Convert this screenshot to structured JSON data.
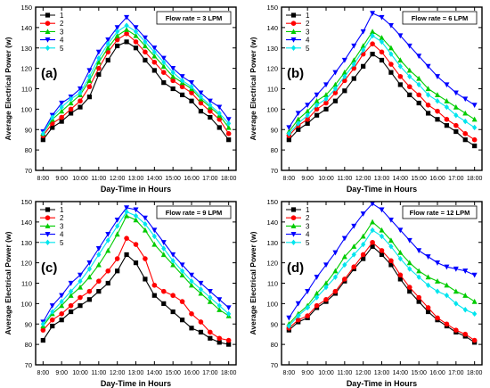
{
  "chart_data": [
    {
      "type": "line",
      "panel_label": "(a)",
      "annotation": "Flow rate = 3 LPM",
      "xlabel": "Day-Time in Hours",
      "ylabel": "Average Electrical Power (w)",
      "xticks": [
        "8:00",
        "9:00",
        "10:00",
        "11:00",
        "12:00",
        "13:00",
        "14:00",
        "15:00",
        "16:00",
        "17:00",
        "18:00"
      ],
      "x": [
        8,
        8.5,
        9,
        9.5,
        10,
        10.5,
        11,
        11.5,
        12,
        12.5,
        13,
        13.5,
        14,
        14.5,
        15,
        15.5,
        16,
        16.5,
        17,
        17.5,
        18
      ],
      "xlim": [
        7.6,
        18.4
      ],
      "ylim": [
        70,
        150
      ],
      "yticks": [
        70,
        80,
        90,
        100,
        110,
        120,
        130,
        140,
        150
      ],
      "legend_position": "top-left",
      "series": [
        {
          "name": "1",
          "values": [
            85,
            91,
            94,
            98,
            101,
            106,
            117,
            124,
            131,
            133,
            130,
            124,
            119,
            113,
            110,
            107,
            104,
            99,
            96,
            91,
            85
          ]
        },
        {
          "name": "2",
          "values": [
            87,
            93,
            96,
            100,
            104,
            111,
            120,
            128,
            134,
            137,
            133,
            128,
            123,
            118,
            114,
            111,
            108,
            103,
            99,
            95,
            88
          ]
        },
        {
          "name": "3",
          "values": [
            88,
            95,
            99,
            103,
            107,
            114,
            123,
            130,
            136,
            139,
            136,
            131,
            126,
            121,
            116,
            113,
            110,
            105,
            101,
            97,
            91
          ]
        },
        {
          "name": "4",
          "values": [
            89,
            97,
            103,
            106,
            110,
            119,
            128,
            134,
            140,
            145,
            140,
            135,
            130,
            125,
            120,
            116,
            113,
            108,
            104,
            101,
            95
          ]
        },
        {
          "name": "5",
          "values": [
            88,
            96,
            101,
            105,
            108,
            116,
            125,
            132,
            138,
            141,
            138,
            133,
            128,
            123,
            118,
            114,
            111,
            106,
            102,
            98,
            93
          ]
        }
      ]
    },
    {
      "type": "line",
      "panel_label": "(b)",
      "annotation": "Flow rate = 6 LPM",
      "xlabel": "Day-Time in Hours",
      "ylabel": "Average Electrical Power (w)",
      "xticks": [
        "8:00",
        "9:00",
        "10:00",
        "11:00",
        "12:00",
        "13:00",
        "14:00",
        "15:00",
        "16:00",
        "17:00",
        "18:00"
      ],
      "x": [
        8,
        8.5,
        9,
        9.5,
        10,
        10.5,
        11,
        11.5,
        12,
        12.5,
        13,
        13.5,
        14,
        14.5,
        15,
        15.5,
        16,
        16.5,
        17,
        17.5,
        18
      ],
      "xlim": [
        7.6,
        18.4
      ],
      "ylim": [
        70,
        150
      ],
      "yticks": [
        70,
        80,
        90,
        100,
        110,
        120,
        130,
        140,
        150
      ],
      "legend_position": "top-left",
      "series": [
        {
          "name": "1",
          "values": [
            85,
            90,
            93,
            97,
            100,
            104,
            109,
            115,
            121,
            127,
            124,
            118,
            112,
            107,
            103,
            98,
            95,
            92,
            89,
            85,
            82
          ]
        },
        {
          "name": "2",
          "values": [
            87,
            92,
            95,
            100,
            103,
            108,
            114,
            120,
            127,
            132,
            128,
            122,
            116,
            111,
            107,
            102,
            99,
            95,
            92,
            88,
            85
          ]
        },
        {
          "name": "3",
          "values": [
            89,
            95,
            99,
            104,
            107,
            112,
            118,
            124,
            131,
            138,
            135,
            130,
            124,
            119,
            115,
            110,
            107,
            104,
            101,
            98,
            95
          ]
        },
        {
          "name": "4",
          "values": [
            91,
            98,
            102,
            107,
            112,
            118,
            124,
            131,
            138,
            147,
            145,
            141,
            136,
            131,
            126,
            121,
            116,
            112,
            108,
            105,
            102
          ]
        },
        {
          "name": "5",
          "values": [
            88,
            93,
            97,
            102,
            105,
            110,
            116,
            122,
            129,
            136,
            133,
            127,
            121,
            116,
            112,
            107,
            104,
            101,
            97,
            94,
            91
          ]
        }
      ]
    },
    {
      "type": "line",
      "panel_label": "(c)",
      "annotation": "Flow rate = 9 LPM",
      "xlabel": "Day-Time in Hours",
      "ylabel": "Average Electrical Power (w)",
      "xticks": [
        "8:00",
        "9:00",
        "10:00",
        "11:00",
        "12:00",
        "13:00",
        "14:00",
        "15:00",
        "16:00",
        "17:00",
        "18:00"
      ],
      "x": [
        8,
        8.5,
        9,
        9.5,
        10,
        10.5,
        11,
        11.5,
        12,
        12.5,
        13,
        13.5,
        14,
        14.5,
        15,
        15.5,
        16,
        16.5,
        17,
        17.5,
        18
      ],
      "xlim": [
        7.6,
        18.4
      ],
      "ylim": [
        70,
        150
      ],
      "yticks": [
        70,
        80,
        90,
        100,
        110,
        120,
        130,
        140,
        150
      ],
      "legend_position": "top-left",
      "series": [
        {
          "name": "1",
          "values": [
            82,
            89,
            92,
            96,
            99,
            102,
            106,
            110,
            116,
            124,
            120,
            112,
            104,
            100,
            96,
            92,
            88,
            86,
            83,
            81,
            80
          ]
        },
        {
          "name": "2",
          "values": [
            87,
            92,
            95,
            99,
            103,
            106,
            111,
            116,
            122,
            132,
            129,
            122,
            109,
            106,
            104,
            101,
            95,
            91,
            86,
            83,
            82
          ]
        },
        {
          "name": "3",
          "values": [
            89,
            95,
            99,
            104,
            108,
            113,
            119,
            126,
            134,
            143,
            141,
            136,
            129,
            124,
            119,
            114,
            109,
            105,
            101,
            97,
            94
          ]
        },
        {
          "name": "4",
          "values": [
            91,
            99,
            104,
            110,
            114,
            120,
            127,
            134,
            141,
            147,
            146,
            142,
            136,
            130,
            124,
            119,
            114,
            110,
            106,
            102,
            98
          ]
        },
        {
          "name": "5",
          "values": [
            90,
            96,
            101,
            106,
            111,
            117,
            124,
            131,
            138,
            145,
            143,
            139,
            133,
            127,
            121,
            116,
            111,
            107,
            103,
            99,
            95
          ]
        }
      ]
    },
    {
      "type": "line",
      "panel_label": "(d)",
      "annotation": "Flow rate = 12 LPM",
      "xlabel": "Day-Time in Hours",
      "ylabel": "Average Electrical Power (w)",
      "xticks": [
        "8:00",
        "9:00",
        "10:00",
        "11:00",
        "12:00",
        "13:00",
        "14:00",
        "15:00",
        "16:00",
        "17:00",
        "18:00"
      ],
      "x": [
        8,
        8.5,
        9,
        9.5,
        10,
        10.5,
        11,
        11.5,
        12,
        12.5,
        13,
        13.5,
        14,
        14.5,
        15,
        15.5,
        16,
        16.5,
        17,
        17.5,
        18
      ],
      "xlim": [
        7.6,
        18.4
      ],
      "ylim": [
        70,
        150
      ],
      "yticks": [
        70,
        80,
        90,
        100,
        110,
        120,
        130,
        140,
        150
      ],
      "legend_position": "top-left",
      "series": [
        {
          "name": "1",
          "values": [
            87,
            91,
            93,
            98,
            101,
            105,
            111,
            117,
            122,
            128,
            124,
            119,
            112,
            106,
            101,
            96,
            92,
            89,
            86,
            84,
            81
          ]
        },
        {
          "name": "2",
          "values": [
            88,
            92,
            94,
            99,
            102,
            106,
            112,
            118,
            124,
            130,
            126,
            121,
            114,
            108,
            103,
            98,
            93,
            90,
            87,
            85,
            82
          ]
        },
        {
          "name": "3",
          "values": [
            90,
            95,
            99,
            105,
            110,
            116,
            123,
            128,
            133,
            140,
            136,
            131,
            125,
            120,
            116,
            113,
            111,
            109,
            106,
            104,
            101
          ]
        },
        {
          "name": "4",
          "values": [
            93,
            100,
            106,
            113,
            119,
            125,
            132,
            138,
            144,
            149,
            146,
            141,
            136,
            131,
            126,
            123,
            120,
            118,
            117,
            116,
            114
          ]
        },
        {
          "name": "5",
          "values": [
            89,
            94,
            98,
            103,
            108,
            113,
            119,
            124,
            129,
            136,
            133,
            128,
            122,
            117,
            113,
            109,
            106,
            104,
            100,
            97,
            95
          ]
        }
      ]
    }
  ],
  "series_styles": [
    {
      "color": "#000000",
      "marker": "square"
    },
    {
      "color": "#ff0000",
      "marker": "circle"
    },
    {
      "color": "#00cc00",
      "marker": "triangle-up"
    },
    {
      "color": "#0000ff",
      "marker": "triangle-down"
    },
    {
      "color": "#00e5ee",
      "marker": "diamond"
    }
  ]
}
